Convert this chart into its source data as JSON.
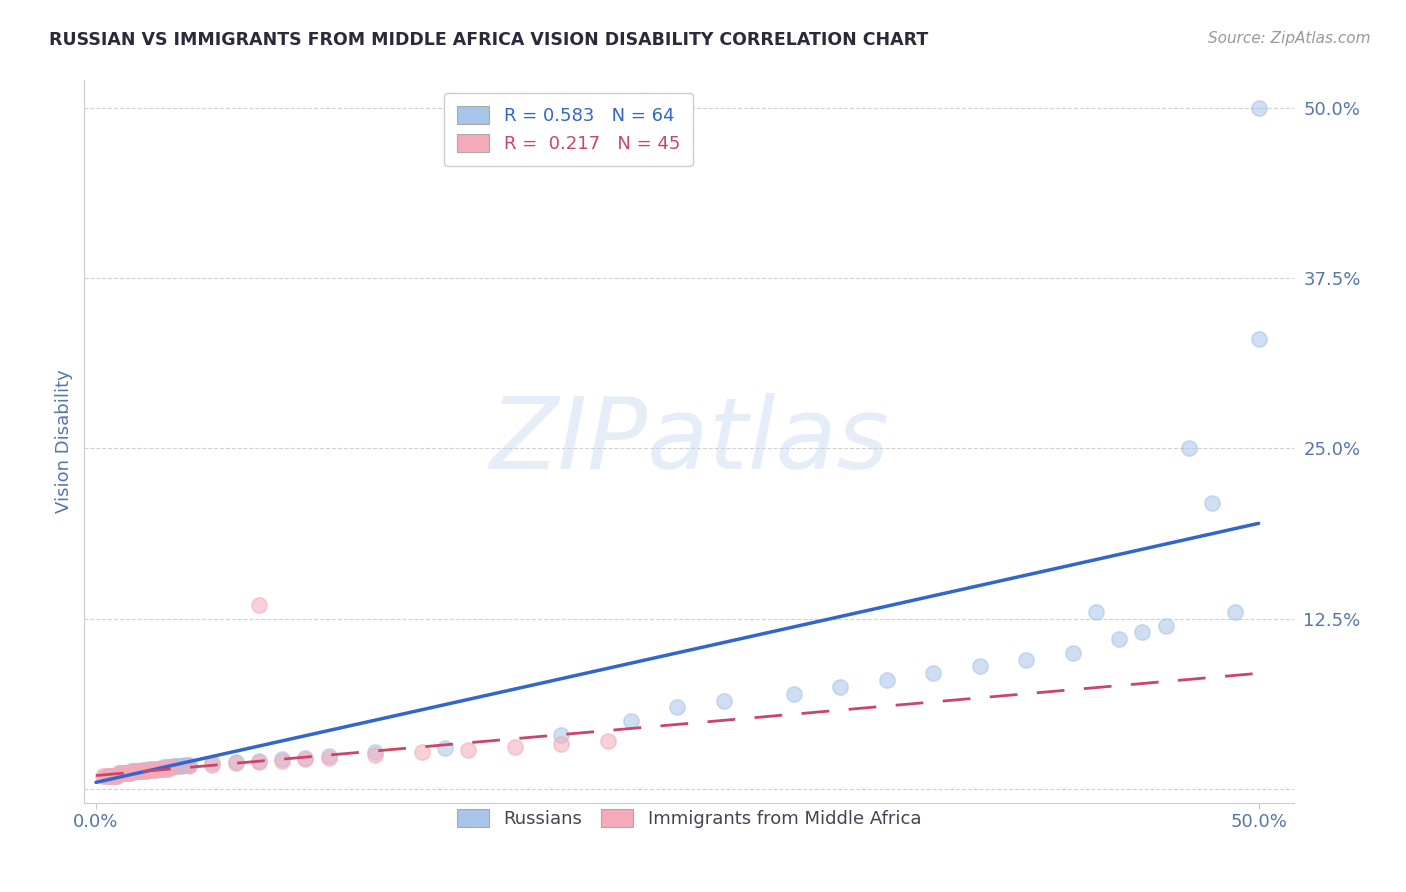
{
  "title": "RUSSIAN VS IMMIGRANTS FROM MIDDLE AFRICA VISION DISABILITY CORRELATION CHART",
  "source": "Source: ZipAtlas.com",
  "ylabel": "Vision Disability",
  "watermark": "ZIPatlas",
  "r_blue": 0.583,
  "n_blue": 64,
  "r_pink": 0.217,
  "n_pink": 45,
  "xlim": [
    -0.005,
    0.515
  ],
  "ylim": [
    -0.01,
    0.52
  ],
  "xticks": [
    0.0,
    0.5
  ],
  "xticklabels": [
    "0.0%",
    "50.0%"
  ],
  "yticks": [
    0.0,
    0.125,
    0.25,
    0.375,
    0.5
  ],
  "yticklabels": [
    "",
    "12.5%",
    "25.0%",
    "37.5%",
    "50.0%"
  ],
  "legend_label_blue": "Russians",
  "legend_label_pink": "Immigrants from Middle Africa",
  "blue_color": "#a8c4e8",
  "pink_color": "#f4aab8",
  "blue_line_color": "#3366cc",
  "pink_line_color": "#cc4466",
  "title_color": "#2a2a3a",
  "axis_label_color": "#5577aa",
  "tick_color": "#5577aa",
  "grid_color": "#cccccc",
  "background_color": "#ffffff",
  "blue_x": [
    0.005,
    0.006,
    0.007,
    0.008,
    0.009,
    0.01,
    0.011,
    0.012,
    0.013,
    0.014,
    0.015,
    0.016,
    0.017,
    0.018,
    0.019,
    0.02,
    0.021,
    0.022,
    0.023,
    0.024,
    0.025,
    0.026,
    0.027,
    0.028,
    0.029,
    0.03,
    0.031,
    0.032,
    0.033,
    0.034,
    0.035,
    0.036,
    0.037,
    0.038,
    0.039,
    0.04,
    0.05,
    0.06,
    0.07,
    0.08,
    0.09,
    0.1,
    0.12,
    0.15,
    0.2,
    0.23,
    0.25,
    0.27,
    0.3,
    0.32,
    0.34,
    0.36,
    0.38,
    0.4,
    0.42,
    0.43,
    0.44,
    0.45,
    0.46,
    0.47,
    0.48,
    0.49,
    0.5,
    0.5
  ],
  "blue_y": [
    0.01,
    0.01,
    0.01,
    0.01,
    0.01,
    0.012,
    0.012,
    0.012,
    0.012,
    0.012,
    0.013,
    0.013,
    0.013,
    0.013,
    0.013,
    0.014,
    0.014,
    0.014,
    0.015,
    0.015,
    0.015,
    0.015,
    0.015,
    0.015,
    0.016,
    0.016,
    0.016,
    0.016,
    0.017,
    0.017,
    0.017,
    0.017,
    0.017,
    0.018,
    0.018,
    0.018,
    0.019,
    0.02,
    0.021,
    0.022,
    0.023,
    0.024,
    0.027,
    0.03,
    0.04,
    0.05,
    0.06,
    0.065,
    0.07,
    0.075,
    0.08,
    0.085,
    0.09,
    0.095,
    0.1,
    0.13,
    0.11,
    0.115,
    0.12,
    0.25,
    0.21,
    0.13,
    0.33,
    0.5
  ],
  "pink_x": [
    0.003,
    0.004,
    0.005,
    0.006,
    0.007,
    0.008,
    0.009,
    0.01,
    0.011,
    0.012,
    0.013,
    0.014,
    0.015,
    0.016,
    0.017,
    0.018,
    0.019,
    0.02,
    0.021,
    0.022,
    0.023,
    0.024,
    0.025,
    0.026,
    0.027,
    0.028,
    0.029,
    0.03,
    0.031,
    0.032,
    0.033,
    0.04,
    0.05,
    0.06,
    0.07,
    0.08,
    0.09,
    0.1,
    0.12,
    0.14,
    0.16,
    0.18,
    0.2,
    0.22,
    0.07
  ],
  "pink_y": [
    0.01,
    0.01,
    0.01,
    0.01,
    0.01,
    0.01,
    0.01,
    0.012,
    0.012,
    0.012,
    0.012,
    0.012,
    0.012,
    0.013,
    0.013,
    0.013,
    0.013,
    0.013,
    0.013,
    0.013,
    0.014,
    0.014,
    0.014,
    0.014,
    0.015,
    0.015,
    0.015,
    0.015,
    0.015,
    0.016,
    0.016,
    0.017,
    0.018,
    0.019,
    0.02,
    0.021,
    0.022,
    0.023,
    0.025,
    0.027,
    0.029,
    0.031,
    0.033,
    0.035,
    0.135
  ],
  "blue_trend": [
    0.0,
    0.5,
    0.005,
    0.195
  ],
  "pink_trend": [
    0.0,
    0.5,
    0.01,
    0.085
  ]
}
